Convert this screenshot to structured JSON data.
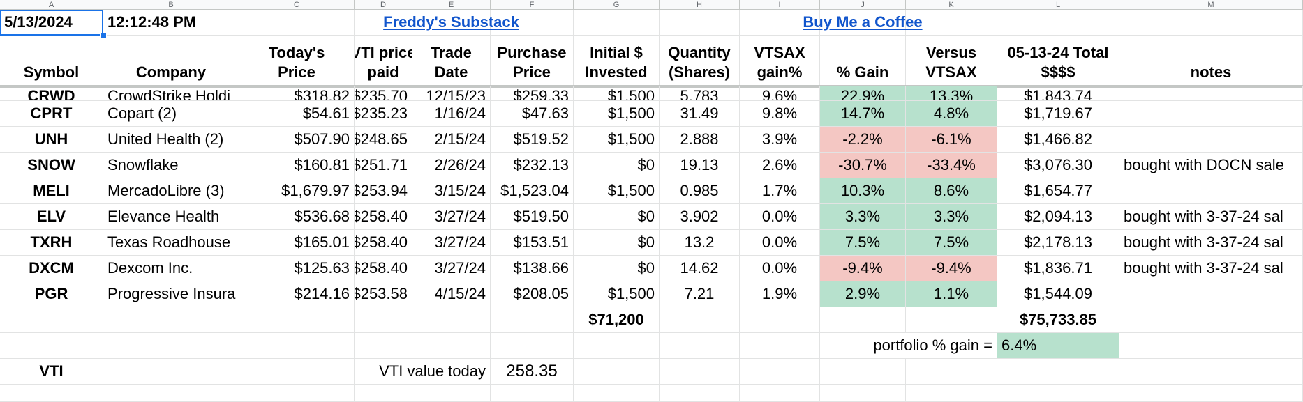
{
  "columns": [
    "A",
    "B",
    "C",
    "D",
    "E",
    "F",
    "G",
    "H",
    "I",
    "J",
    "K",
    "L",
    "M"
  ],
  "top_row": {
    "date": "5/13/2024",
    "time": "12:12:48 PM",
    "link1": "Freddy's Substack",
    "link2": "Buy Me a Coffee"
  },
  "headers": {
    "symbol": "Symbol",
    "company": "Company",
    "today_price": [
      "Today's",
      "Price"
    ],
    "vti_paid": [
      "VTI price",
      "paid"
    ],
    "trade_date": [
      "Trade",
      "Date"
    ],
    "purchase_price": [
      "Purchase",
      "Price"
    ],
    "initial": [
      "Initial $",
      "Invested"
    ],
    "quantity": [
      "Quantity",
      "(Shares)"
    ],
    "vtsax_gain": [
      "VTSAX",
      "gain%"
    ],
    "pct_gain": "% Gain",
    "versus": [
      "Versus",
      "VTSAX"
    ],
    "total": [
      "05-13-24   Total",
      "$$$$"
    ],
    "notes": "notes"
  },
  "rows": [
    {
      "symbol": "CRWD",
      "company": "CrowdStrike Holdi",
      "price": "$318.82",
      "vti": "$235.70",
      "date": "12/15/23",
      "purchase": "$259.33",
      "initial": "$1,500",
      "qty": "5.783",
      "vtsax": "9.6%",
      "gain": "22.9%",
      "versus": "13.3%",
      "total": "$1,843.74",
      "notes": "",
      "gain_color": "green",
      "versus_color": "green"
    },
    {
      "symbol": "CPRT",
      "company": "Copart (2)",
      "price": "$54.61",
      "vti": "$235.23",
      "date": "1/16/24",
      "purchase": "$47.63",
      "initial": "$1,500",
      "qty": "31.49",
      "vtsax": "9.8%",
      "gain": "14.7%",
      "versus": "4.8%",
      "total": "$1,719.67",
      "notes": "",
      "gain_color": "green",
      "versus_color": "green"
    },
    {
      "symbol": "UNH",
      "company": "United Health (2)",
      "price": "$507.90",
      "vti": "$248.65",
      "date": "2/15/24",
      "purchase": "$519.52",
      "initial": "$1,500",
      "qty": "2.888",
      "vtsax": "3.9%",
      "gain": "-2.2%",
      "versus": "-6.1%",
      "total": "$1,466.82",
      "notes": "",
      "gain_color": "red",
      "versus_color": "red"
    },
    {
      "symbol": "SNOW",
      "company": "Snowflake",
      "price": "$160.81",
      "vti": "$251.71",
      "date": "2/26/24",
      "purchase": "$232.13",
      "initial": "$0",
      "qty": "19.13",
      "vtsax": "2.6%",
      "gain": "-30.7%",
      "versus": "-33.4%",
      "total": "$3,076.30",
      "notes": "bought with DOCN sale",
      "gain_color": "red",
      "versus_color": "red"
    },
    {
      "symbol": "MELI",
      "company": "MercadoLibre (3)",
      "price": "$1,679.97",
      "vti": "$253.94",
      "date": "3/15/24",
      "purchase": "$1,523.04",
      "initial": "$1,500",
      "qty": "0.985",
      "vtsax": "1.7%",
      "gain": "10.3%",
      "versus": "8.6%",
      "total": "$1,654.77",
      "notes": "",
      "gain_color": "green",
      "versus_color": "green"
    },
    {
      "symbol": "ELV",
      "company": "Elevance Health",
      "price": "$536.68",
      "vti": "$258.40",
      "date": "3/27/24",
      "purchase": "$519.50",
      "initial": "$0",
      "qty": "3.902",
      "vtsax": "0.0%",
      "gain": "3.3%",
      "versus": "3.3%",
      "total": "$2,094.13",
      "notes": "bought with 3-37-24 sal",
      "gain_color": "green",
      "versus_color": "green"
    },
    {
      "symbol": "TXRH",
      "company": "Texas Roadhouse",
      "price": "$165.01",
      "vti": "$258.40",
      "date": "3/27/24",
      "purchase": "$153.51",
      "initial": "$0",
      "qty": "13.2",
      "vtsax": "0.0%",
      "gain": "7.5%",
      "versus": "7.5%",
      "total": "$2,178.13",
      "notes": "bought with 3-37-24 sal",
      "gain_color": "green",
      "versus_color": "green"
    },
    {
      "symbol": "DXCM",
      "company": "Dexcom Inc.",
      "price": "$125.63",
      "vti": "$258.40",
      "date": "3/27/24",
      "purchase": "$138.66",
      "initial": "$0",
      "qty": "14.62",
      "vtsax": "0.0%",
      "gain": "-9.4%",
      "versus": "-9.4%",
      "total": "$1,836.71",
      "notes": "bought with 3-37-24 sal",
      "gain_color": "red",
      "versus_color": "red"
    },
    {
      "symbol": "PGR",
      "company": "Progressive Insura",
      "price": "$214.16",
      "vti": "$253.58",
      "date": "4/15/24",
      "purchase": "$208.05",
      "initial": "$1,500",
      "qty": "7.21",
      "vtsax": "1.9%",
      "gain": "2.9%",
      "versus": "1.1%",
      "total": "$1,544.09",
      "notes": "",
      "gain_color": "green",
      "versus_color": "green"
    }
  ],
  "totals": {
    "initial": "$71,200",
    "total": "$75,733.85"
  },
  "portfolio": {
    "label": "portfolio % gain =",
    "value": "6.4%",
    "color": "#b7e1cd"
  },
  "vti_row": {
    "symbol": "VTI",
    "label": "VTI value today",
    "value": "258.35"
  }
}
